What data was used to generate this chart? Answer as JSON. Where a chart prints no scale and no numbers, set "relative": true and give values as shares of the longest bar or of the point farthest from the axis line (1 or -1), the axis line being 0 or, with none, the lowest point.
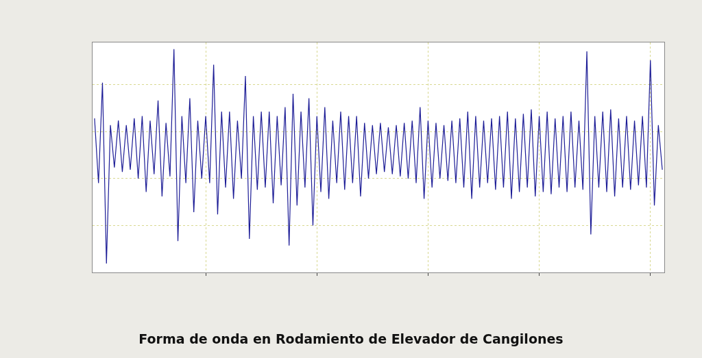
{
  "chart_data": {
    "type": "line",
    "title": "Forma de onda en Rodamiento de Elevador de Cangilones",
    "relative": true,
    "grid": true,
    "categories": [
      null,
      null,
      null,
      null,
      null,
      null,
      null,
      null,
      null,
      null,
      null,
      null,
      null,
      null,
      null,
      null,
      null,
      null,
      null,
      null,
      null,
      null,
      null,
      null,
      null,
      null,
      null,
      null,
      null,
      null,
      null,
      null,
      null,
      null,
      null,
      null,
      null,
      null,
      null,
      null,
      null,
      null,
      null,
      null,
      null,
      null,
      null,
      null,
      null,
      null,
      null,
      null,
      null,
      null,
      null,
      null,
      null,
      null,
      null,
      null,
      null,
      null,
      null,
      null,
      null,
      null,
      null,
      null,
      null,
      null,
      null,
      null,
      null,
      null,
      null,
      null,
      null,
      null,
      null,
      null,
      null,
      null,
      null,
      null,
      null,
      null,
      null,
      null,
      null,
      null,
      null,
      null,
      null,
      null,
      null,
      null,
      null,
      null,
      null,
      null,
      null,
      null,
      null,
      null,
      null,
      null,
      null,
      null,
      null,
      null,
      null,
      null,
      null,
      null,
      null,
      null,
      null,
      null,
      null,
      null,
      null,
      null,
      null,
      null,
      null,
      null,
      null,
      null,
      null,
      null,
      null,
      null,
      null,
      null,
      null,
      null,
      null,
      null,
      null,
      null,
      null,
      null,
      null,
      null
    ],
    "series": [
      {
        "color": "#1c1c96",
        "values": [
          0.69,
          0.4,
          0.85,
          0.04,
          0.66,
          0.47,
          0.68,
          0.45,
          0.66,
          0.46,
          0.69,
          0.42,
          0.7,
          0.36,
          0.68,
          0.44,
          0.77,
          0.34,
          0.67,
          0.43,
          1.0,
          0.14,
          0.7,
          0.4,
          0.78,
          0.27,
          0.68,
          0.42,
          0.7,
          0.4,
          0.93,
          0.26,
          0.72,
          0.38,
          0.72,
          0.33,
          0.68,
          0.42,
          0.88,
          0.15,
          0.7,
          0.37,
          0.72,
          0.38,
          0.72,
          0.31,
          0.7,
          0.39,
          0.74,
          0.12,
          0.8,
          0.3,
          0.72,
          0.38,
          0.78,
          0.21,
          0.7,
          0.36,
          0.74,
          0.33,
          0.68,
          0.4,
          0.72,
          0.37,
          0.7,
          0.4,
          0.7,
          0.34,
          0.67,
          0.42,
          0.66,
          0.44,
          0.67,
          0.45,
          0.65,
          0.44,
          0.66,
          0.43,
          0.67,
          0.42,
          0.68,
          0.4,
          0.74,
          0.33,
          0.68,
          0.38,
          0.67,
          0.42,
          0.66,
          0.41,
          0.68,
          0.4,
          0.69,
          0.38,
          0.72,
          0.33,
          0.7,
          0.38,
          0.68,
          0.4,
          0.69,
          0.37,
          0.7,
          0.38,
          0.72,
          0.33,
          0.69,
          0.36,
          0.71,
          0.38,
          0.73,
          0.34,
          0.7,
          0.36,
          0.72,
          0.35,
          0.69,
          0.38,
          0.7,
          0.36,
          0.72,
          0.38,
          0.68,
          0.37,
          0.99,
          0.17,
          0.7,
          0.38,
          0.72,
          0.36,
          0.73,
          0.34,
          0.69,
          0.38,
          0.7,
          0.37,
          0.68,
          0.39,
          0.7,
          0.38,
          0.95,
          0.3,
          0.66,
          0.46
        ]
      }
    ]
  }
}
